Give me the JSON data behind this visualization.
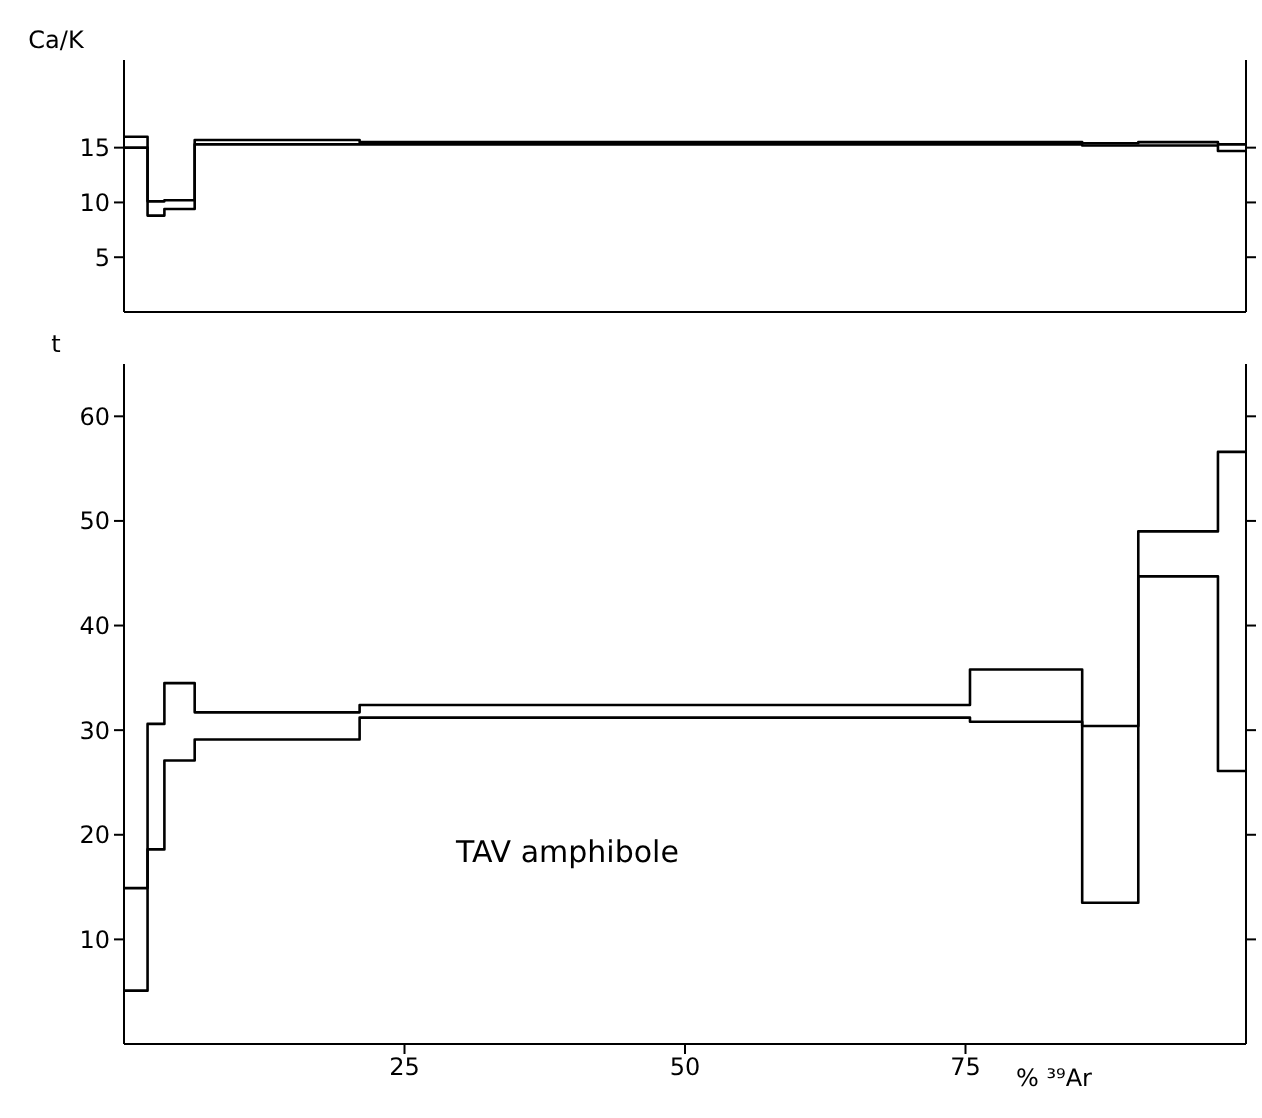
{
  "chart_data": [
    {
      "type": "step",
      "ylabel": "Ca/K",
      "x": [
        0,
        2.1,
        3.6,
        6.3,
        21,
        75.4,
        85.4,
        90.4,
        97.5,
        100
      ],
      "xlim": [
        0,
        100
      ],
      "ylim": [
        0,
        23
      ],
      "yticks": [
        5,
        10,
        15
      ],
      "tick_labels": "y",
      "grid": false,
      "legend": false,
      "marker": "none",
      "line_style": "solid",
      "series": [
        {
          "color": "#000000",
          "values": [
            16.0,
            10.1,
            10.2,
            15.7,
            15.5,
            15.5,
            15.4,
            15.5,
            15.3,
            15.3
          ]
        },
        {
          "color": "#000000",
          "values": [
            15.0,
            8.8,
            9.4,
            15.3,
            15.3,
            15.3,
            15.2,
            15.2,
            14.7,
            14.7
          ]
        }
      ]
    },
    {
      "type": "step",
      "ylabel": "t",
      "xlabel": "% ³⁹Ar",
      "annotations": [
        "TAV amphibole"
      ],
      "x": [
        0,
        2.1,
        3.6,
        6.3,
        21,
        75.4,
        85.4,
        90.4,
        97.5,
        100
      ],
      "xlim": [
        0,
        100
      ],
      "xticks": [
        25,
        50,
        75
      ],
      "ylim": [
        0,
        65
      ],
      "yticks": [
        10,
        20,
        30,
        40,
        50,
        60
      ],
      "grid": false,
      "legend": false,
      "marker": "none",
      "line_style": "solid",
      "series": [
        {
          "color": "#000000",
          "values": [
            14.9,
            30.6,
            34.5,
            31.7,
            32.4,
            35.8,
            30.4,
            49.0,
            56.6,
            56.6
          ]
        },
        {
          "color": "#000000",
          "values": [
            5.1,
            18.6,
            27.1,
            29.1,
            31.2,
            30.8,
            13.5,
            44.7,
            26.1,
            26.1
          ]
        }
      ]
    }
  ]
}
